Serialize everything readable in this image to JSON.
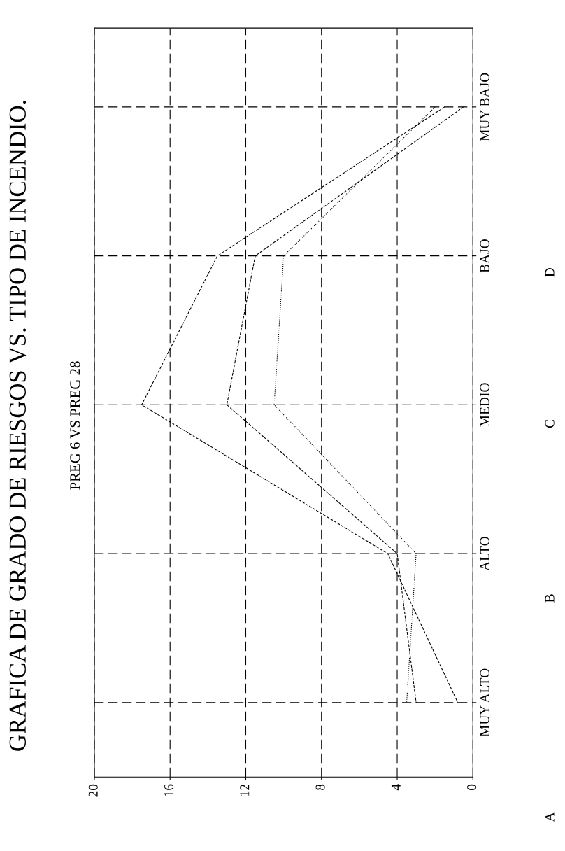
{
  "chart_data": {
    "type": "line",
    "orientation": "horizontal",
    "title": "GRAFICA DE GRADO DE RIESGOS VS. TIPO DE INCENDIO.",
    "subtitle": "PREG 6 VS PREG 28",
    "categories": [
      "MUY BAJO",
      "BAJO",
      "MEDIO",
      "ALTO",
      "MUY ALTO"
    ],
    "series": [
      {
        "color": "#000000",
        "line_style": "dashed",
        "values": [
          1.5,
          13.5,
          17.5,
          4.5,
          0.8
        ]
      },
      {
        "color": "#000000",
        "line_style": "dashed",
        "values": [
          0.5,
          11.5,
          13.0,
          4.0,
          3.0
        ]
      },
      {
        "color": "#000000",
        "line_style": "dotted",
        "values": [
          2.0,
          10.0,
          10.5,
          3.0,
          3.5
        ]
      }
    ],
    "xlim": [
      20,
      0
    ],
    "xticks": [
      20,
      16,
      12,
      8,
      4,
      0
    ],
    "grid": true,
    "annotations": [
      "A",
      "B",
      "C",
      "D"
    ]
  }
}
